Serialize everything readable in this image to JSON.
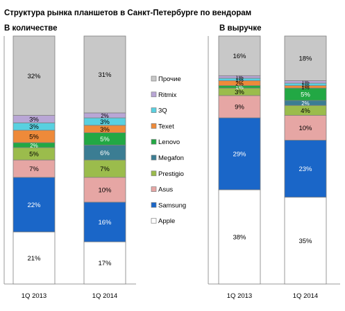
{
  "title": "Структура рынка планшетов в Санкт-Петербурге по вендорам",
  "panel_left_title": "В количестве",
  "panel_right_title": "В выручке",
  "colors": {
    "Apple": "#ffffff",
    "Samsung": "#1a66c8",
    "Asus": "#e6a6a4",
    "Prestigio": "#9bbc4c",
    "Megafon": "#3b7d93",
    "Lenovo": "#22a844",
    "Texet": "#ee8a3a",
    "3Q": "#59d0e0",
    "Ritmix": "#b9a6d6",
    "Прочие": "#c8c8c8"
  },
  "chart_data": {
    "type": "bar",
    "stacked": true,
    "normalized": true,
    "ylim": [
      0,
      100
    ],
    "series_order_bottom_to_top": [
      "Apple",
      "Samsung",
      "Asus",
      "Prestigio",
      "Megafon",
      "Lenovo",
      "Texet",
      "3Q",
      "Ritmix",
      "Прочие"
    ],
    "legend": {
      "position": "center",
      "entries": [
        "Прочие",
        "Ritmix",
        "3Q",
        "Texet",
        "Lenovo",
        "Megafon",
        "Prestigio",
        "Asus",
        "Samsung",
        "Apple"
      ]
    },
    "panels": [
      {
        "name": "В количестве",
        "categories": [
          "1Q 2013",
          "1Q 2014"
        ],
        "series": [
          {
            "name": "Apple",
            "values": [
              21,
              17
            ],
            "labels": [
              "21%",
              "17%"
            ]
          },
          {
            "name": "Samsung",
            "values": [
              22,
              16
            ],
            "labels": [
              "22%",
              "16%"
            ]
          },
          {
            "name": "Asus",
            "values": [
              7,
              10
            ],
            "labels": [
              "7%",
              "10%"
            ]
          },
          {
            "name": "Prestigio",
            "values": [
              5,
              7
            ],
            "labels": [
              "5%",
              "7%"
            ]
          },
          {
            "name": "Megafon",
            "values": [
              0,
              6
            ],
            "labels": [
              "",
              "6%"
            ]
          },
          {
            "name": "Lenovo",
            "values": [
              2,
              5
            ],
            "labels": [
              "2%",
              "5%"
            ]
          },
          {
            "name": "Texet",
            "values": [
              5,
              3
            ],
            "labels": [
              "5%",
              "3%"
            ]
          },
          {
            "name": "3Q",
            "values": [
              3,
              3
            ],
            "labels": [
              "3%",
              "3%"
            ]
          },
          {
            "name": "Ritmix",
            "values": [
              3,
              2
            ],
            "labels": [
              "3%",
              "2%"
            ]
          },
          {
            "name": "Прочие",
            "values": [
              32,
              31
            ],
            "labels": [
              "32%",
              "31%"
            ]
          }
        ]
      },
      {
        "name": "В выручке",
        "categories": [
          "1Q 2013",
          "1Q 2014"
        ],
        "series": [
          {
            "name": "Apple",
            "values": [
              38,
              35
            ],
            "labels": [
              "38%",
              "35%"
            ]
          },
          {
            "name": "Samsung",
            "values": [
              29,
              23
            ],
            "labels": [
              "29%",
              "23%"
            ]
          },
          {
            "name": "Asus",
            "values": [
              9,
              10
            ],
            "labels": [
              "9%",
              "10%"
            ]
          },
          {
            "name": "Prestigio",
            "values": [
              3,
              4
            ],
            "labels": [
              "3%",
              "4%"
            ]
          },
          {
            "name": "Megafon",
            "values": [
              0,
              2
            ],
            "labels": [
              "",
              "2%"
            ]
          },
          {
            "name": "Lenovo",
            "values": [
              1,
              5
            ],
            "labels": [
              "1%",
              "5%"
            ]
          },
          {
            "name": "Texet",
            "values": [
              2,
              1
            ],
            "labels": [
              "2%",
              "1%"
            ]
          },
          {
            "name": "3Q",
            "values": [
              1,
              1
            ],
            "labels": [
              "1%",
              "1%"
            ]
          },
          {
            "name": "Ritmix",
            "values": [
              1,
              1
            ],
            "labels": [
              "1%",
              "1%"
            ]
          },
          {
            "name": "Прочие",
            "values": [
              16,
              18
            ],
            "labels": [
              "16%",
              "18%"
            ]
          }
        ]
      }
    ]
  }
}
